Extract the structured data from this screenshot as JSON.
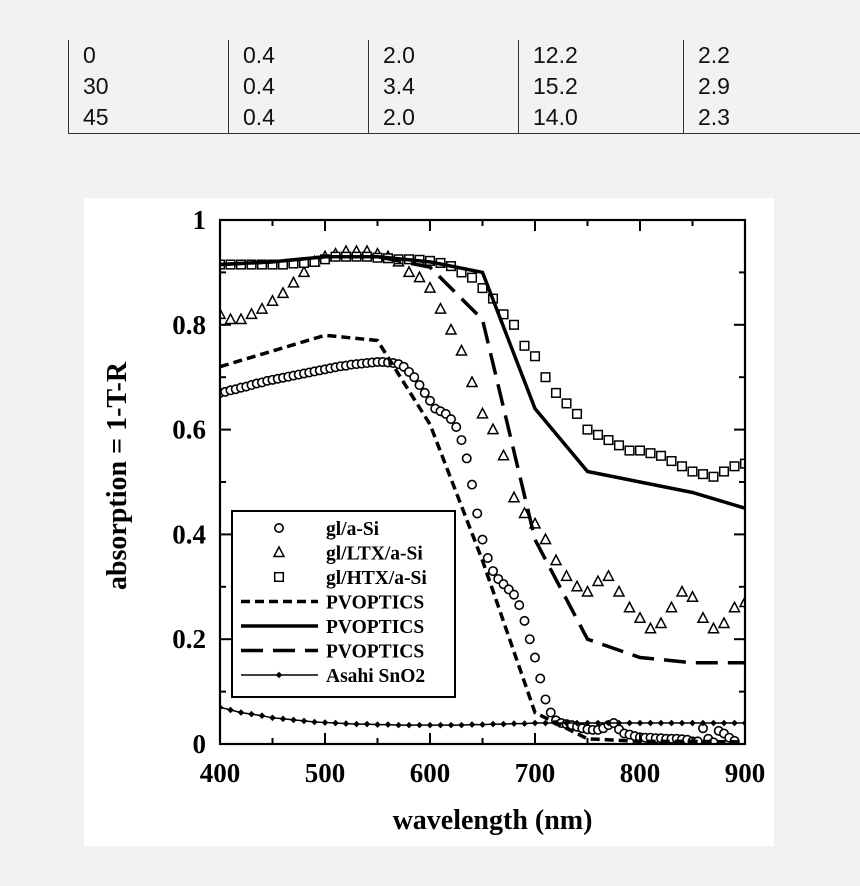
{
  "table": {
    "rows": [
      [
        "0",
        "0.4",
        "2.0",
        "12.2",
        "2.2"
      ],
      [
        "30",
        "0.4",
        "3.4",
        "15.2",
        "2.9"
      ],
      [
        "45",
        "0.4",
        "2.0",
        "14.0",
        "2.3"
      ]
    ]
  },
  "chart_data": {
    "type": "line",
    "xlabel": "wavelength (nm)",
    "ylabel": "absorption = 1-T-R",
    "xlim": [
      400,
      900
    ],
    "ylim": [
      0,
      1
    ],
    "x_ticks": [
      400,
      500,
      600,
      700,
      800,
      900
    ],
    "y_ticks": [
      0,
      0.2,
      0.4,
      0.6,
      0.8,
      1
    ],
    "y_tick_labels": [
      "0",
      "0.2",
      "0.4",
      "0.6",
      "0.8",
      "1"
    ],
    "grid": false,
    "legend_position": "bottom-left",
    "series": [
      {
        "name": "gl/a-Si",
        "marker": "circle",
        "color": "#000000",
        "x": [
          400,
          405,
          410,
          415,
          420,
          425,
          430,
          435,
          440,
          445,
          450,
          455,
          460,
          465,
          470,
          475,
          480,
          485,
          490,
          495,
          500,
          505,
          510,
          515,
          520,
          525,
          530,
          535,
          540,
          545,
          550,
          555,
          560,
          565,
          570,
          575,
          580,
          585,
          590,
          595,
          600,
          605,
          610,
          615,
          620,
          625,
          630,
          635,
          640,
          645,
          650,
          655,
          660,
          665,
          670,
          675,
          680,
          685,
          690,
          695,
          700,
          705,
          710,
          715,
          720,
          725,
          730,
          735,
          740,
          745,
          750,
          755,
          760,
          765,
          770,
          775,
          780,
          785,
          790,
          795,
          800,
          805,
          810,
          815,
          820,
          825,
          830,
          835,
          840,
          845,
          850,
          855,
          860,
          865,
          870,
          875,
          880,
          885,
          890
        ],
        "y": [
          0.67,
          0.672,
          0.675,
          0.677,
          0.68,
          0.682,
          0.685,
          0.688,
          0.69,
          0.693,
          0.695,
          0.697,
          0.699,
          0.701,
          0.703,
          0.705,
          0.707,
          0.709,
          0.711,
          0.713,
          0.715,
          0.717,
          0.719,
          0.721,
          0.722,
          0.724,
          0.725,
          0.726,
          0.727,
          0.728,
          0.729,
          0.729,
          0.728,
          0.727,
          0.725,
          0.72,
          0.71,
          0.7,
          0.685,
          0.67,
          0.655,
          0.64,
          0.635,
          0.63,
          0.62,
          0.605,
          0.58,
          0.545,
          0.495,
          0.44,
          0.39,
          0.355,
          0.33,
          0.315,
          0.305,
          0.295,
          0.285,
          0.265,
          0.235,
          0.2,
          0.165,
          0.125,
          0.085,
          0.06,
          0.045,
          0.04,
          0.038,
          0.036,
          0.033,
          0.03,
          0.028,
          0.027,
          0.027,
          0.03,
          0.036,
          0.04,
          0.028,
          0.02,
          0.018,
          0.015,
          0.013,
          0.012,
          0.012,
          0.011,
          0.011,
          0.01,
          0.01,
          0.01,
          0.009,
          0.008,
          0.005,
          0.005,
          0.03,
          0.01,
          0.003,
          0.025,
          0.02,
          0.012,
          0.006
        ]
      },
      {
        "name": "gl/LTX/a-Si",
        "marker": "triangle",
        "color": "#000000",
        "x": [
          400,
          410,
          420,
          430,
          440,
          450,
          460,
          470,
          480,
          490,
          500,
          510,
          520,
          530,
          540,
          550,
          560,
          570,
          580,
          590,
          600,
          610,
          620,
          630,
          640,
          650,
          660,
          670,
          680,
          690,
          700,
          710,
          720,
          730,
          740,
          750,
          760,
          770,
          780,
          790,
          800,
          810,
          820,
          830,
          840,
          850,
          860,
          870,
          880,
          890,
          900
        ],
        "y": [
          0.82,
          0.81,
          0.81,
          0.82,
          0.83,
          0.845,
          0.86,
          0.88,
          0.9,
          0.92,
          0.93,
          0.935,
          0.94,
          0.94,
          0.94,
          0.935,
          0.93,
          0.92,
          0.9,
          0.89,
          0.87,
          0.83,
          0.79,
          0.75,
          0.69,
          0.63,
          0.6,
          0.55,
          0.47,
          0.44,
          0.42,
          0.39,
          0.35,
          0.32,
          0.3,
          0.29,
          0.31,
          0.32,
          0.29,
          0.26,
          0.24,
          0.22,
          0.23,
          0.26,
          0.29,
          0.28,
          0.24,
          0.22,
          0.23,
          0.26,
          0.27
        ]
      },
      {
        "name": "gl/HTX/a-Si",
        "marker": "square",
        "color": "#000000",
        "x": [
          400,
          410,
          420,
          430,
          440,
          450,
          460,
          470,
          480,
          490,
          500,
          510,
          520,
          530,
          540,
          550,
          560,
          570,
          580,
          590,
          600,
          610,
          620,
          630,
          640,
          650,
          660,
          670,
          680,
          690,
          700,
          710,
          720,
          730,
          740,
          750,
          760,
          770,
          780,
          790,
          800,
          810,
          820,
          830,
          840,
          850,
          860,
          870,
          880,
          890,
          900
        ],
        "y": [
          0.915,
          0.915,
          0.915,
          0.915,
          0.915,
          0.915,
          0.915,
          0.917,
          0.918,
          0.92,
          0.925,
          0.93,
          0.93,
          0.93,
          0.93,
          0.928,
          0.927,
          0.925,
          0.925,
          0.924,
          0.922,
          0.918,
          0.912,
          0.9,
          0.89,
          0.87,
          0.85,
          0.82,
          0.8,
          0.76,
          0.74,
          0.7,
          0.67,
          0.65,
          0.63,
          0.6,
          0.59,
          0.58,
          0.57,
          0.56,
          0.56,
          0.555,
          0.55,
          0.54,
          0.53,
          0.52,
          0.515,
          0.51,
          0.52,
          0.53,
          0.535
        ]
      },
      {
        "name": "PVOPTICS",
        "line_style": "short-dash",
        "color": "#000000",
        "x": [
          400,
          450,
          500,
          550,
          600,
          650,
          700,
          750,
          800,
          850,
          900
        ],
        "y": [
          0.72,
          0.75,
          0.78,
          0.77,
          0.61,
          0.35,
          0.06,
          0.01,
          0.005,
          0.005,
          0.004
        ]
      },
      {
        "name": "PVOPTICS",
        "line_style": "solid",
        "color": "#000000",
        "x": [
          400,
          450,
          500,
          550,
          600,
          650,
          700,
          750,
          800,
          850,
          900
        ],
        "y": [
          0.915,
          0.92,
          0.93,
          0.93,
          0.92,
          0.9,
          0.64,
          0.52,
          0.5,
          0.48,
          0.45
        ]
      },
      {
        "name": "PVOPTICS",
        "line_style": "long-dash",
        "color": "#000000",
        "x": [
          400,
          450,
          500,
          550,
          600,
          650,
          700,
          750,
          800,
          850,
          900
        ],
        "y": [
          0.915,
          0.92,
          0.93,
          0.93,
          0.91,
          0.81,
          0.39,
          0.2,
          0.165,
          0.155,
          0.155
        ]
      },
      {
        "name": "Asahi SnO2",
        "line_style": "solid-thin",
        "marker": "diamond",
        "color": "#000000",
        "x": [
          400,
          410,
          420,
          430,
          440,
          450,
          460,
          470,
          480,
          490,
          500,
          510,
          520,
          530,
          540,
          550,
          560,
          570,
          580,
          590,
          600,
          610,
          620,
          630,
          640,
          650,
          660,
          670,
          680,
          690,
          700,
          710,
          720,
          730,
          740,
          750,
          760,
          770,
          780,
          790,
          800,
          810,
          820,
          830,
          840,
          850,
          860,
          870,
          880,
          890,
          900
        ],
        "y": [
          0.07,
          0.065,
          0.06,
          0.057,
          0.054,
          0.05,
          0.048,
          0.046,
          0.044,
          0.042,
          0.041,
          0.04,
          0.039,
          0.038,
          0.038,
          0.037,
          0.037,
          0.036,
          0.036,
          0.036,
          0.036,
          0.036,
          0.036,
          0.036,
          0.037,
          0.037,
          0.038,
          0.038,
          0.039,
          0.039,
          0.04,
          0.04,
          0.04,
          0.04,
          0.04,
          0.04,
          0.04,
          0.04,
          0.04,
          0.04,
          0.04,
          0.04,
          0.04,
          0.04,
          0.04,
          0.04,
          0.04,
          0.04,
          0.04,
          0.04,
          0.04
        ]
      }
    ]
  }
}
